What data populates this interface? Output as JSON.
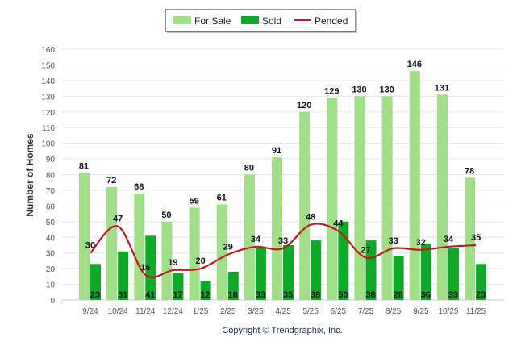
{
  "chart_data": {
    "type": "bar",
    "title": "",
    "xlabel": "",
    "ylabel": "Number of Homes",
    "ylim": [
      0,
      160
    ],
    "ytick_step": 10,
    "grid": true,
    "legend_placement": "top-center",
    "categories": [
      "9/24",
      "10/24",
      "11/24",
      "12/24",
      "1/25",
      "2/25",
      "3/25",
      "4/25",
      "5/25",
      "6/25",
      "7/25",
      "8/25",
      "9/25",
      "10/25",
      "11/25"
    ],
    "series": [
      {
        "name": "For Sale",
        "kind": "bar",
        "color": "#a0de88",
        "values": [
          81,
          72,
          68,
          50,
          59,
          61,
          80,
          91,
          120,
          129,
          130,
          130,
          146,
          131,
          78
        ]
      },
      {
        "name": "Sold",
        "kind": "bar",
        "color": "#0daa28",
        "values": [
          23,
          31,
          41,
          17,
          12,
          18,
          33,
          35,
          38,
          50,
          38,
          28,
          36,
          33,
          23
        ]
      },
      {
        "name": "Pended",
        "kind": "line",
        "color": "#c8161d",
        "values": [
          30,
          47,
          16,
          19,
          20,
          29,
          34,
          33,
          48,
          44,
          27,
          33,
          32,
          34,
          35
        ]
      }
    ]
  },
  "footer": {
    "copyright": "Copyright © Trendgraphix, Inc."
  }
}
